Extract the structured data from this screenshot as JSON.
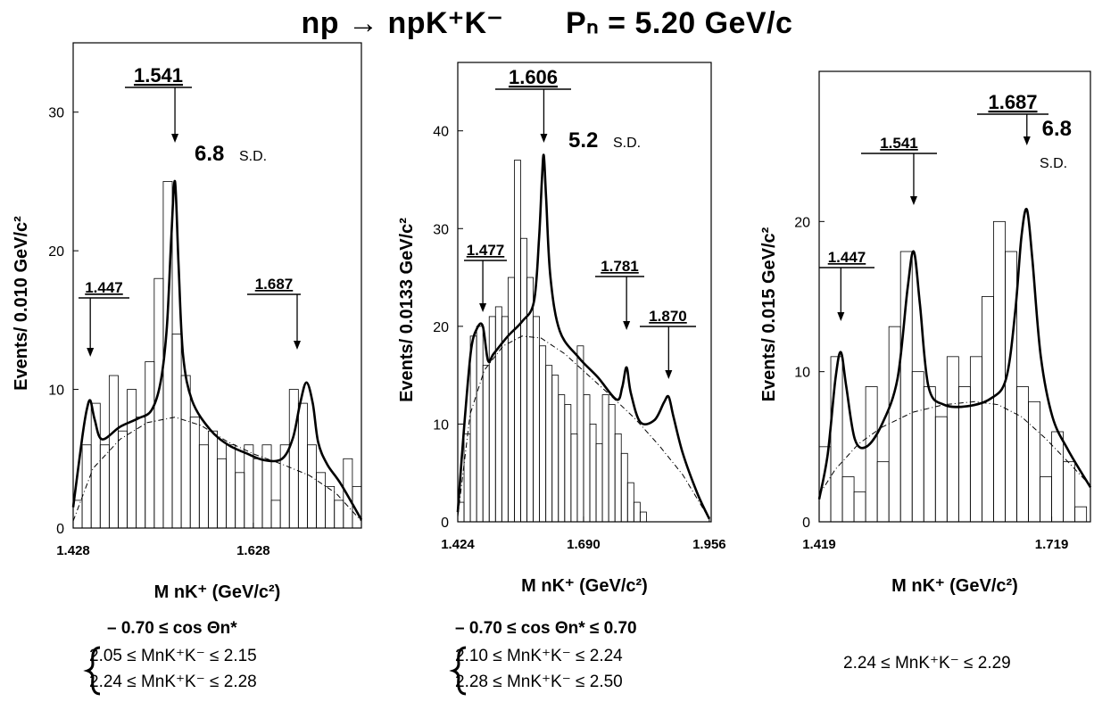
{
  "title": {
    "reaction": "np → npK⁺K⁻",
    "momentum": "Pₙ = 5.20 GeV/c"
  },
  "panels": [
    {
      "ylabel": "Events/ 0.010 GeV/c²",
      "xlabel": "M nK⁺ (GeV/c²)",
      "xticks": [
        "1.428",
        "1.628"
      ],
      "yticks": [
        "0",
        "10",
        "20",
        "30"
      ],
      "sd_value": "6.8",
      "sd_unit": "S.D.",
      "peaks": [
        "1.447",
        "1.541",
        "1.687"
      ],
      "cut_lines": [
        "– 0.70 ≤ cos Θn* ",
        "2.05 ≤ MnK⁺K⁻ ≤ 2.15",
        "2.24 ≤ MnK⁺K⁻ ≤ 2.28"
      ]
    },
    {
      "ylabel": "Events/ 0.0133 GeV/c²",
      "xlabel": "M nK⁺ (GeV/c²)",
      "xticks": [
        "1.424",
        "1.690",
        "1.956"
      ],
      "yticks": [
        "0",
        "10",
        "20",
        "30",
        "40"
      ],
      "sd_value": "5.2",
      "sd_unit": "S.D.",
      "peaks": [
        "1.477",
        "1.606",
        "1.781",
        "1.870"
      ],
      "cut_lines": [
        "– 0.70 ≤ cos Θn* ≤ 0.70",
        "2.10 ≤ MnK⁺K⁻ ≤ 2.24",
        "2.28 ≤ MnK⁺K⁻ ≤ 2.50"
      ]
    },
    {
      "ylabel": "Events/ 0.015 GeV/c²",
      "xlabel": "M nK⁺ (GeV/c²)",
      "xticks": [
        "1.419",
        "1.719"
      ],
      "yticks": [
        "0",
        "10",
        "20"
      ],
      "sd_value": "6.8",
      "sd_unit": "S.D.",
      "peaks": [
        "1.447",
        "1.541",
        "1.687"
      ],
      "cut_lines": [
        "2.24 ≤ MnK⁺K⁻ ≤ 2.29"
      ]
    }
  ],
  "chart_data": [
    {
      "type": "bar",
      "ylabel": "Events/ 0.010 GeV/c²",
      "xlabel": "M nK⁺ (GeV/c²)",
      "xlim": [
        1.428,
        1.748
      ],
      "ylim": [
        0,
        35
      ],
      "bin_width": 0.01,
      "bin_start": 1.428,
      "values": [
        2,
        6,
        9,
        6,
        11,
        7,
        10,
        8,
        12,
        18,
        25,
        14,
        11,
        8,
        6,
        7,
        5,
        6,
        4,
        6,
        5,
        6,
        2,
        6,
        10,
        9,
        6,
        4,
        3,
        2,
        5,
        3
      ],
      "fit": {
        "name": "fit",
        "x": [
          1.428,
          1.438,
          1.443,
          1.447,
          1.452,
          1.46,
          1.48,
          1.5,
          1.515,
          1.525,
          1.532,
          1.537,
          1.541,
          1.545,
          1.55,
          1.56,
          1.58,
          1.6,
          1.62,
          1.64,
          1.66,
          1.672,
          1.68,
          1.687,
          1.694,
          1.7,
          1.71,
          1.725,
          1.748
        ],
        "y": [
          1.5,
          6.5,
          8.5,
          9.2,
          7.8,
          6.4,
          7.3,
          7.9,
          8.5,
          10.5,
          14.5,
          21.0,
          25.0,
          19.0,
          12.5,
          9.2,
          7.1,
          6.0,
          5.4,
          4.9,
          5.0,
          6.5,
          9.0,
          10.5,
          9.0,
          6.2,
          4.6,
          3.2,
          0.6
        ]
      },
      "background": {
        "x": [
          1.428,
          1.45,
          1.48,
          1.51,
          1.541,
          1.57,
          1.6,
          1.63,
          1.66,
          1.69,
          1.72,
          1.748
        ],
        "y": [
          0.5,
          4.3,
          6.4,
          7.6,
          8.0,
          7.4,
          6.2,
          5.3,
          4.6,
          3.8,
          2.5,
          0.5
        ]
      },
      "peaks": [
        1.447,
        1.541,
        1.687
      ],
      "significance": "6.8 S.D."
    },
    {
      "type": "bar",
      "ylabel": "Events/ 0.0133 GeV/c²",
      "xlabel": "M nK⁺ (GeV/c²)",
      "xlim": [
        1.424,
        1.96
      ],
      "ylim": [
        0,
        47
      ],
      "bin_width": 0.0133,
      "bin_start": 1.424,
      "values": [
        2,
        9,
        19,
        20,
        16,
        21,
        22,
        21,
        25,
        37,
        29,
        25,
        21,
        18,
        16,
        15,
        13,
        12,
        9,
        18,
        13,
        10,
        8,
        13,
        12,
        9,
        7,
        4,
        2,
        1,
        0,
        0,
        0,
        0,
        0,
        0,
        0,
        0,
        0,
        0
      ],
      "fit": {
        "name": "fit",
        "x": [
          1.424,
          1.438,
          1.452,
          1.465,
          1.477,
          1.488,
          1.5,
          1.53,
          1.56,
          1.585,
          1.596,
          1.602,
          1.606,
          1.611,
          1.62,
          1.64,
          1.68,
          1.72,
          1.76,
          1.772,
          1.781,
          1.79,
          1.81,
          1.84,
          1.86,
          1.87,
          1.88,
          1.9,
          1.93,
          1.956
        ],
        "y": [
          1.0,
          10.0,
          17.5,
          19.8,
          20.0,
          16.5,
          17.2,
          19.0,
          20.5,
          22.5,
          29.0,
          35.0,
          37.5,
          33.0,
          25.0,
          19.5,
          16.8,
          14.8,
          12.5,
          13.8,
          15.8,
          13.2,
          10.2,
          10.4,
          12.2,
          12.8,
          10.8,
          7.0,
          3.0,
          0.3
        ]
      },
      "background": {
        "x": [
          1.424,
          1.45,
          1.48,
          1.52,
          1.56,
          1.6,
          1.65,
          1.7,
          1.75,
          1.8,
          1.85,
          1.9,
          1.956
        ],
        "y": [
          0.5,
          11.0,
          15.5,
          18.0,
          19.0,
          18.8,
          17.2,
          15.0,
          12.8,
          10.5,
          7.8,
          4.8,
          0.3
        ]
      },
      "peaks": [
        1.477,
        1.606,
        1.781,
        1.87
      ],
      "significance": "5.2 S.D."
    },
    {
      "type": "bar",
      "ylabel": "Events/ 0.015 GeV/c²",
      "xlabel": "M nK⁺ (GeV/c²)",
      "xlim": [
        1.419,
        1.769
      ],
      "ylim": [
        0,
        30
      ],
      "bin_width": 0.015,
      "bin_start": 1.419,
      "values": [
        5,
        11,
        3,
        2,
        9,
        4,
        13,
        18,
        10,
        9,
        7,
        11,
        9,
        11,
        15,
        20,
        18,
        9,
        8,
        3,
        6,
        4,
        1
      ],
      "fit": {
        "name": "fit",
        "x": [
          1.419,
          1.43,
          1.44,
          1.447,
          1.454,
          1.465,
          1.48,
          1.5,
          1.52,
          1.533,
          1.541,
          1.549,
          1.56,
          1.58,
          1.61,
          1.64,
          1.66,
          1.672,
          1.68,
          1.687,
          1.694,
          1.705,
          1.72,
          1.74,
          1.769
        ],
        "y": [
          1.5,
          4.5,
          9.5,
          11.3,
          9.0,
          5.5,
          5.0,
          6.5,
          9.5,
          15.5,
          18.0,
          14.5,
          9.0,
          7.8,
          7.7,
          8.2,
          9.5,
          14.0,
          19.0,
          20.8,
          17.5,
          11.0,
          7.0,
          4.8,
          2.3
        ]
      },
      "background": {
        "x": [
          1.419,
          1.44,
          1.47,
          1.5,
          1.54,
          1.58,
          1.62,
          1.65,
          1.68,
          1.71,
          1.74,
          1.769
        ],
        "y": [
          1.8,
          3.5,
          5.2,
          6.3,
          7.3,
          7.8,
          8.0,
          7.8,
          7.0,
          5.6,
          4.0,
          2.4
        ]
      },
      "peaks": [
        1.447,
        1.541,
        1.687
      ],
      "significance": "6.8 S.D."
    }
  ]
}
